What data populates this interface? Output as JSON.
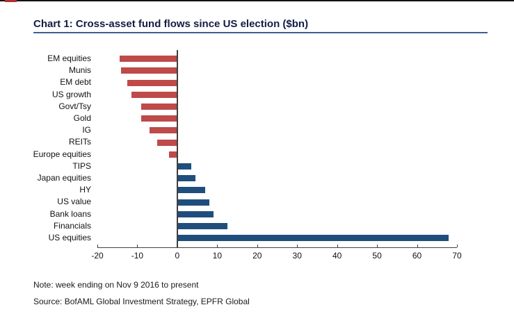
{
  "header": {
    "title": "Chart 1: Cross-asset fund flows since US election ($bn)"
  },
  "chart_data": {
    "type": "bar",
    "orientation": "horizontal",
    "title": "Chart 1: Cross-asset fund flows since US election ($bn)",
    "unit": "$bn",
    "categories": [
      "EM equities",
      "Munis",
      "EM debt",
      "US growth",
      "Govt/Tsy",
      "Gold",
      "IG",
      "REITs",
      "Europe equities",
      "TIPS",
      "Japan equities",
      "HY",
      "US value",
      "Bank loans",
      "Financials",
      "US equities"
    ],
    "values": [
      -14.5,
      -14,
      -12.5,
      -11.5,
      -9,
      -9,
      -7,
      -5,
      -2,
      3.5,
      4.5,
      7,
      8,
      9,
      12.5,
      68
    ],
    "xlabel": "",
    "ylabel": "",
    "xlim": [
      -20,
      70
    ],
    "xticks": [
      -20,
      -10,
      0,
      10,
      20,
      30,
      40,
      50,
      60,
      70
    ],
    "grid": false,
    "colors": {
      "negative": "#be4a49",
      "positive": "#1f4e7d",
      "axis": "#404040",
      "title": "#131c44",
      "underline": "#3d5e95",
      "top_dash": "#b03030"
    }
  },
  "footer": {
    "note": "Note: week ending on Nov 9 2016 to present",
    "source": "Source: BofAML Global Investment Strategy, EPFR Global"
  }
}
